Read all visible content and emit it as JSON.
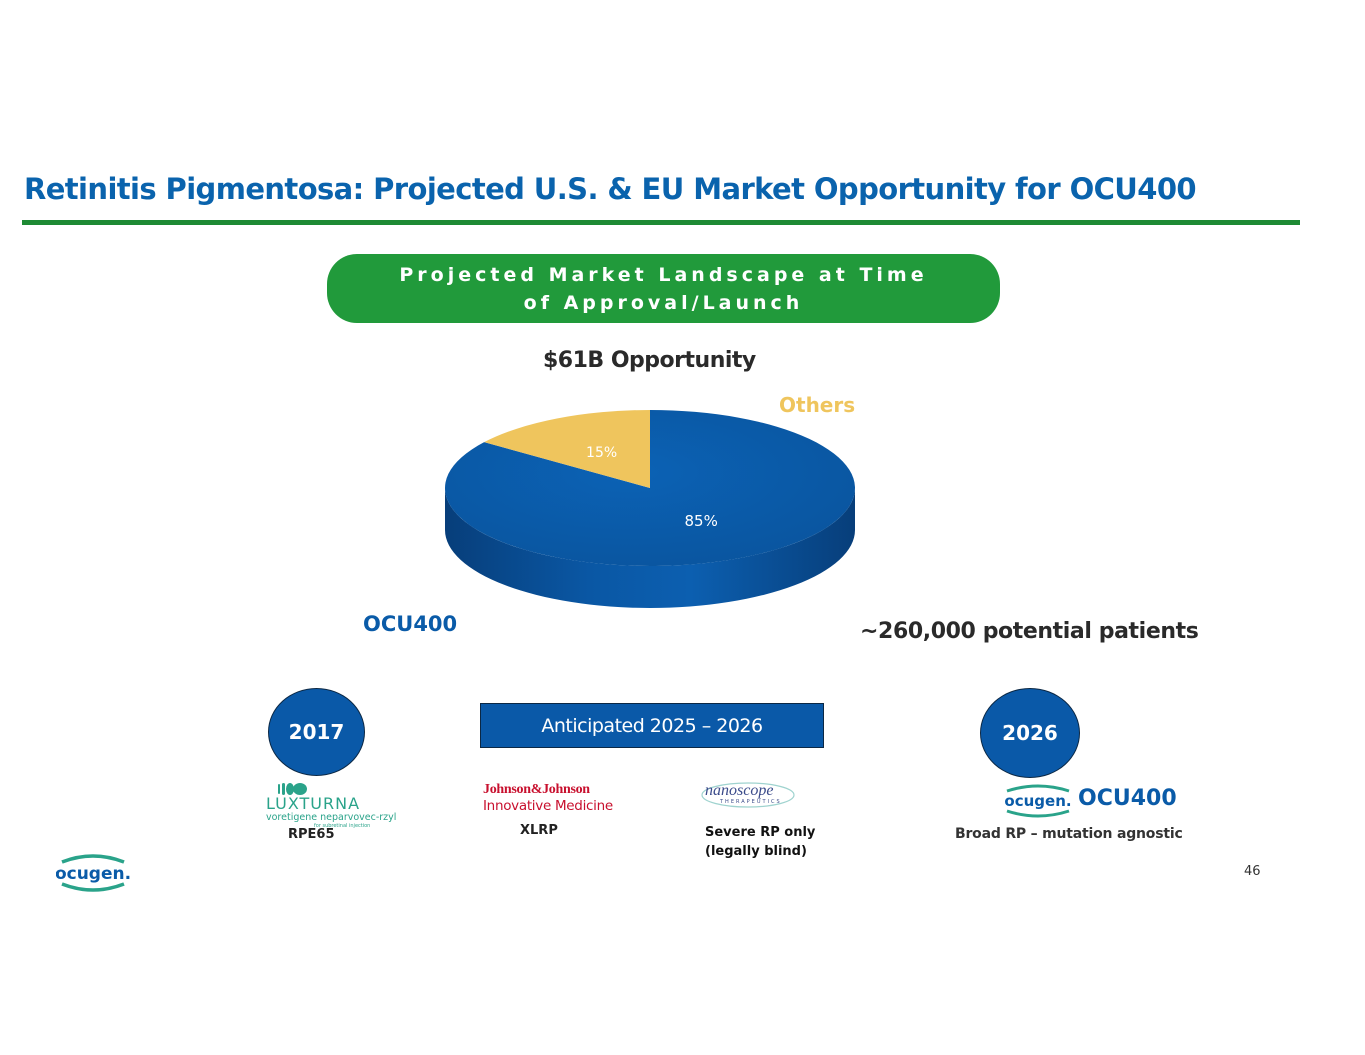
{
  "title": "Retinitis Pigmentosa: Projected U.S. & EU Market Opportunity for OCU400",
  "banner": {
    "text": "Projected Market Landscape at Time of Approval/Launch"
  },
  "opportunity": "$61B Opportunity",
  "patients": "~260,000 potential patients",
  "colors": {
    "title": "#0a63ad",
    "green": "#219a3b",
    "blue": "#0a59a8",
    "gold": "#efc55d"
  },
  "chart_data": {
    "type": "pie",
    "title": "$61B Opportunity",
    "three_d": true,
    "slices": [
      {
        "label": "OCU400",
        "value": 85,
        "display": "85%",
        "color": "#0a59a8"
      },
      {
        "label": "Others",
        "value": 15,
        "display": "15%",
        "color": "#efc55d"
      }
    ]
  },
  "timeline": {
    "year_left": "2017",
    "anticipated": "Anticipated 2025 – 2026",
    "year_right": "2026"
  },
  "products": {
    "luxturna": {
      "logo_name": "LUXTURNA",
      "logo_sub": "voretigene neparvovec-rzyl",
      "logo_fine": "for subretinal injection",
      "indication": "RPE65"
    },
    "jnj": {
      "logo_name": "Johnson&Johnson",
      "logo_sub": "Innovative Medicine",
      "indication": "XLRP"
    },
    "nanoscope": {
      "logo_name": "nanoscope",
      "logo_sub": "THERAPEUTICS",
      "indication_line1": "Severe RP only",
      "indication_line2": "(legally blind)"
    },
    "ocugen": {
      "logo_name": "ocugen.",
      "product": "OCU400",
      "indication": "Broad RP – mutation agnostic"
    }
  },
  "footer": {
    "logo": "ocugen.",
    "page_number": "46"
  }
}
